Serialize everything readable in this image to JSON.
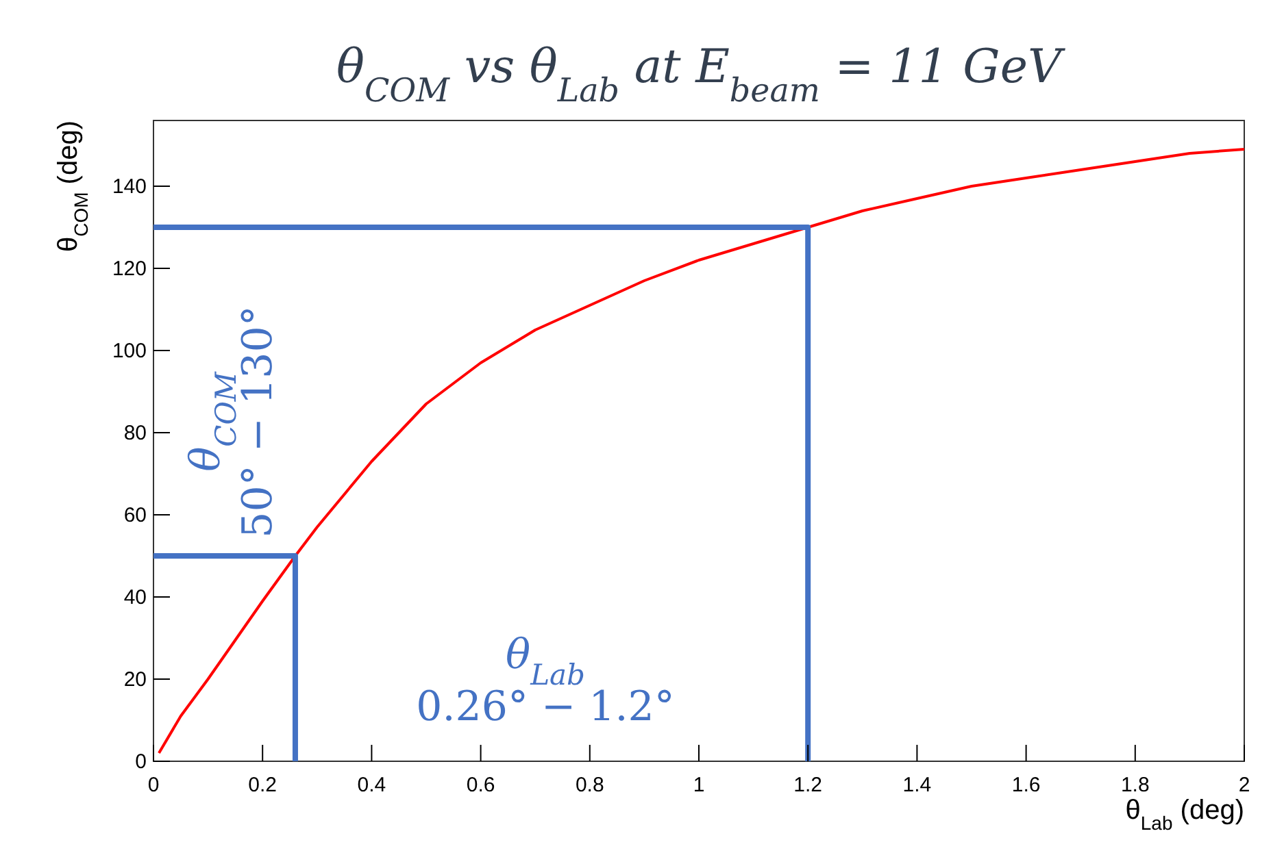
{
  "chart_data": {
    "type": "line",
    "title": "θ$_{COM}$ vs θ$_{Lab}$ at E$_{beam}$ = 11 GeV",
    "xlabel": "θ$_{Lab}$ (deg)",
    "ylabel": "θ$_{COM}$ (deg)",
    "xlim": [
      0,
      2
    ],
    "ylim": [
      0,
      156
    ],
    "xticks": [
      0,
      0.2,
      0.4,
      0.6,
      0.8,
      1,
      1.2,
      1.4,
      1.6,
      1.8,
      2
    ],
    "yticks": [
      0,
      20,
      40,
      60,
      80,
      100,
      120,
      140
    ],
    "grid": false,
    "marker": "none",
    "line_style": "solid",
    "series": [
      {
        "color": "#ff0000",
        "x": [
          0.01,
          0.05,
          0.1,
          0.2,
          0.26,
          0.3,
          0.4,
          0.5,
          0.6,
          0.7,
          0.8,
          0.9,
          1.0,
          1.1,
          1.2,
          1.3,
          1.4,
          1.5,
          1.6,
          1.7,
          1.8,
          1.9,
          2.0
        ],
        "values": [
          2,
          11,
          20,
          39,
          50,
          57,
          73,
          87,
          97,
          105,
          111,
          117,
          122,
          126,
          130,
          134,
          137,
          140,
          142,
          144,
          146,
          148,
          149
        ]
      },
      {
        "color": "#4472c4",
        "x": [
          0,
          1.2,
          1.2
        ],
        "values": [
          130,
          130,
          0
        ]
      },
      {
        "color": "#4472c4",
        "x": [
          0,
          0.26,
          0.26
        ],
        "values": [
          50,
          50,
          0
        ]
      }
    ],
    "annotations": [
      "θ$_{COM}$\n50° − 130°",
      "θ$_{Lab}$\n0.26° − 1.2°"
    ]
  }
}
